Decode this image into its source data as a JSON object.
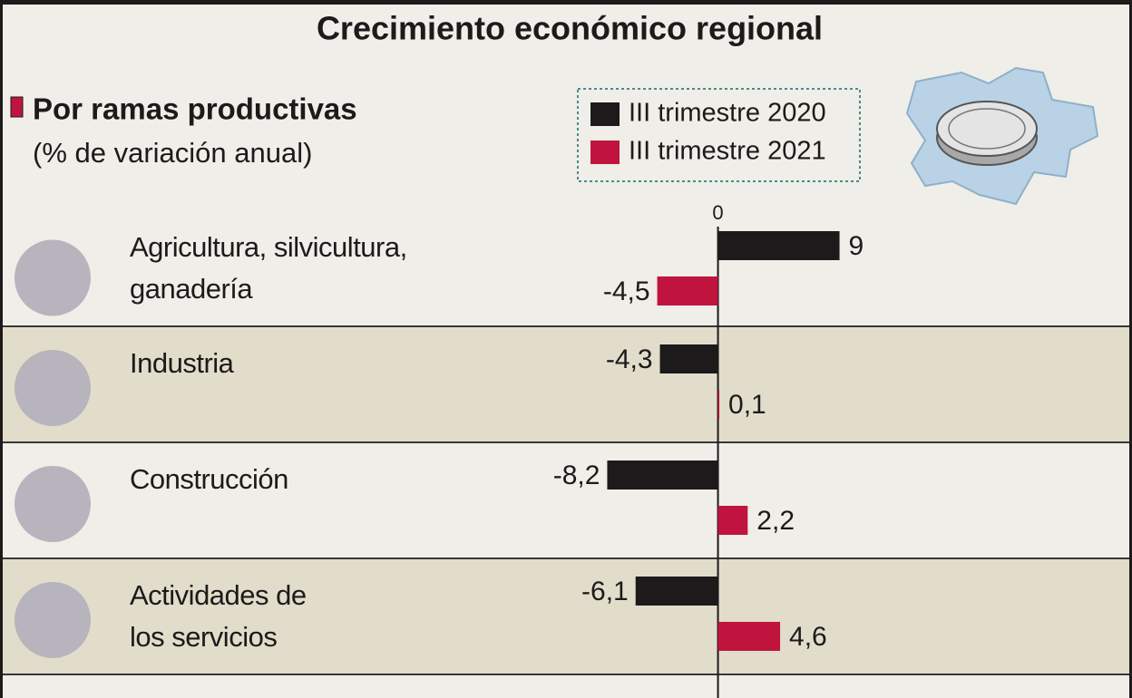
{
  "chart_data": {
    "type": "bar",
    "orientation": "horizontal",
    "title": "Crecimiento económico regional",
    "subtitle": "Por ramas productivas",
    "y_label": "(% de variación anual)",
    "categories": [
      "Agricultura, silvicultura,\nganadería",
      "Industria",
      "Construcción",
      "Actividades de\nlos servicios"
    ],
    "series": [
      {
        "name": "III trimestre 2020",
        "color": "#1c1a1a",
        "values": [
          9,
          -4.3,
          -8.2,
          -6.1
        ],
        "value_labels": [
          "9",
          "-4,3",
          "-8,2",
          "-6,1"
        ]
      },
      {
        "name": "III trimestre 2021",
        "color": "#c0143f",
        "values": [
          -4.5,
          0.1,
          2.2,
          4.6
        ],
        "value_labels": [
          "-4,5",
          "0,1",
          "2,2",
          "4,6"
        ]
      }
    ],
    "xlim": [
      -13,
      14
    ],
    "xticks": [
      0
    ]
  }
}
